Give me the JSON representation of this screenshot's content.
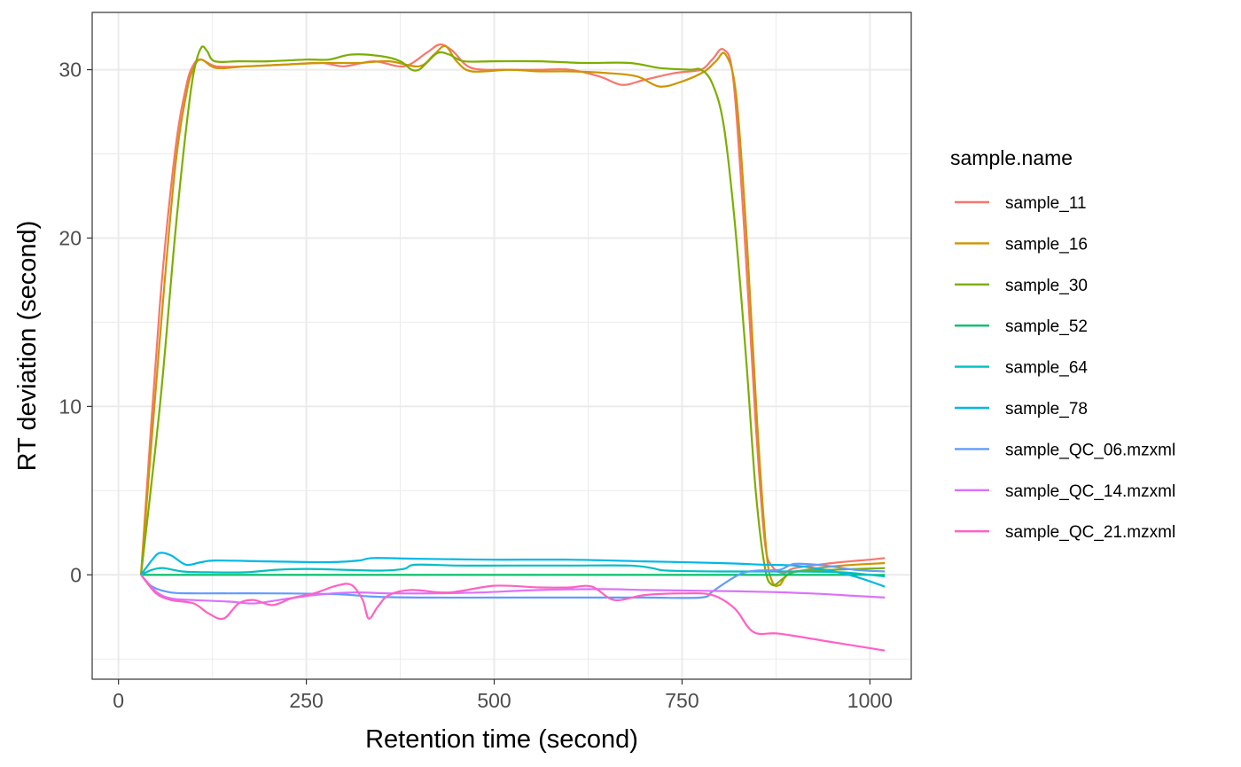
{
  "chart_data": {
    "type": "line",
    "title": "",
    "xlabel": "Retention time (second)",
    "ylabel": "RT deviation (second)",
    "xlim": [
      -35,
      1055
    ],
    "ylim": [
      -6.2,
      33.4
    ],
    "x_ticks": [
      0,
      250,
      500,
      750,
      1000
    ],
    "x_tick_labels": [
      "0",
      "250",
      "500",
      "750",
      "1000"
    ],
    "y_ticks": [
      0,
      10,
      20,
      30
    ],
    "y_tick_labels": [
      "0",
      "10",
      "20",
      "30"
    ],
    "grid": true,
    "legend_title": "sample.name",
    "legend_position": "right",
    "series": [
      {
        "name": "sample_11",
        "color": "#F8766D",
        "points": [
          [
            30,
            0
          ],
          [
            55,
            16
          ],
          [
            75,
            25
          ],
          [
            90,
            29
          ],
          [
            100,
            30.3
          ],
          [
            110,
            30.6
          ],
          [
            130,
            30.2
          ],
          [
            170,
            30.2
          ],
          [
            220,
            30.3
          ],
          [
            270,
            30.4
          ],
          [
            300,
            30.2
          ],
          [
            340,
            30.5
          ],
          [
            380,
            30.2
          ],
          [
            410,
            31
          ],
          [
            428,
            31.5
          ],
          [
            445,
            31.1
          ],
          [
            470,
            30.1
          ],
          [
            520,
            30
          ],
          [
            560,
            30
          ],
          [
            600,
            30
          ],
          [
            640,
            29.6
          ],
          [
            670,
            29.1
          ],
          [
            700,
            29.4
          ],
          [
            740,
            29.8
          ],
          [
            775,
            30
          ],
          [
            790,
            30.6
          ],
          [
            805,
            31.2
          ],
          [
            818,
            29.5
          ],
          [
            832,
            21
          ],
          [
            848,
            9
          ],
          [
            860,
            2
          ],
          [
            870,
            0.5
          ],
          [
            885,
            0.1
          ],
          [
            900,
            0.4
          ],
          [
            950,
            0.7
          ],
          [
            1000,
            0.9
          ],
          [
            1020,
            1
          ]
        ]
      },
      {
        "name": "sample_16",
        "color": "#CD9600",
        "points": [
          [
            30,
            0
          ],
          [
            55,
            14
          ],
          [
            75,
            24
          ],
          [
            90,
            28.5
          ],
          [
            100,
            30.1
          ],
          [
            110,
            30.6
          ],
          [
            130,
            30.1
          ],
          [
            170,
            30.2
          ],
          [
            220,
            30.3
          ],
          [
            270,
            30.4
          ],
          [
            320,
            30.4
          ],
          [
            360,
            30.5
          ],
          [
            400,
            30.2
          ],
          [
            420,
            30.9
          ],
          [
            435,
            31.4
          ],
          [
            450,
            30.5
          ],
          [
            470,
            29.9
          ],
          [
            520,
            30
          ],
          [
            560,
            29.9
          ],
          [
            600,
            29.9
          ],
          [
            650,
            29.8
          ],
          [
            690,
            29.6
          ],
          [
            720,
            29
          ],
          [
            750,
            29.3
          ],
          [
            780,
            29.9
          ],
          [
            795,
            30.5
          ],
          [
            808,
            30.9
          ],
          [
            822,
            28.5
          ],
          [
            836,
            20
          ],
          [
            850,
            9
          ],
          [
            862,
            1.5
          ],
          [
            870,
            -0.4
          ],
          [
            880,
            -0.6
          ],
          [
            895,
            0.1
          ],
          [
            950,
            0.5
          ],
          [
            1020,
            0.7
          ]
        ]
      },
      {
        "name": "sample_30",
        "color": "#7CAE00",
        "points": [
          [
            30,
            0
          ],
          [
            55,
            10
          ],
          [
            75,
            20
          ],
          [
            90,
            26.5
          ],
          [
            100,
            29.8
          ],
          [
            110,
            31.3
          ],
          [
            118,
            31.1
          ],
          [
            128,
            30.5
          ],
          [
            160,
            30.5
          ],
          [
            200,
            30.5
          ],
          [
            250,
            30.6
          ],
          [
            280,
            30.6
          ],
          [
            310,
            30.9
          ],
          [
            350,
            30.8
          ],
          [
            375,
            30.5
          ],
          [
            390,
            30
          ],
          [
            400,
            30
          ],
          [
            410,
            30.4
          ],
          [
            425,
            31
          ],
          [
            440,
            30.9
          ],
          [
            460,
            30.5
          ],
          [
            500,
            30.5
          ],
          [
            560,
            30.5
          ],
          [
            620,
            30.4
          ],
          [
            680,
            30.4
          ],
          [
            720,
            30.1
          ],
          [
            760,
            30
          ],
          [
            775,
            30
          ],
          [
            790,
            29.2
          ],
          [
            805,
            26.8
          ],
          [
            820,
            21
          ],
          [
            835,
            13
          ],
          [
            848,
            5
          ],
          [
            860,
            0.5
          ],
          [
            870,
            -0.6
          ],
          [
            885,
            -0.2
          ],
          [
            900,
            0.2
          ],
          [
            950,
            0.3
          ],
          [
            1020,
            0.4
          ]
        ]
      },
      {
        "name": "sample_52",
        "color": "#00BE67",
        "points": [
          [
            30,
            0
          ],
          [
            1020,
            0
          ]
        ]
      },
      {
        "name": "sample_64",
        "color": "#00BFC4",
        "points": [
          [
            30,
            0
          ],
          [
            45,
            0.3
          ],
          [
            60,
            0.4
          ],
          [
            85,
            0.2
          ],
          [
            120,
            0.15
          ],
          [
            170,
            0.15
          ],
          [
            210,
            0.3
          ],
          [
            250,
            0.35
          ],
          [
            300,
            0.3
          ],
          [
            350,
            0.25
          ],
          [
            380,
            0.35
          ],
          [
            395,
            0.6
          ],
          [
            450,
            0.55
          ],
          [
            520,
            0.55
          ],
          [
            600,
            0.55
          ],
          [
            680,
            0.55
          ],
          [
            710,
            0.4
          ],
          [
            730,
            0.25
          ],
          [
            800,
            0.2
          ],
          [
            900,
            0.2
          ],
          [
            960,
            0.15
          ],
          [
            1000,
            0
          ],
          [
            1020,
            -0.1
          ]
        ]
      },
      {
        "name": "sample_78",
        "color": "#00B8E7",
        "points": [
          [
            30,
            0
          ],
          [
            45,
            0.9
          ],
          [
            55,
            1.3
          ],
          [
            70,
            1.15
          ],
          [
            90,
            0.6
          ],
          [
            110,
            0.75
          ],
          [
            130,
            0.85
          ],
          [
            200,
            0.8
          ],
          [
            280,
            0.75
          ],
          [
            320,
            0.85
          ],
          [
            340,
            1
          ],
          [
            400,
            0.95
          ],
          [
            500,
            0.9
          ],
          [
            600,
            0.9
          ],
          [
            700,
            0.8
          ],
          [
            800,
            0.7
          ],
          [
            860,
            0.6
          ],
          [
            900,
            0.55
          ],
          [
            940,
            0.3
          ],
          [
            980,
            -0.1
          ],
          [
            1020,
            -0.7
          ]
        ]
      },
      {
        "name": "sample_QC_06.mzxml",
        "color": "#619CFF",
        "points": [
          [
            30,
            0
          ],
          [
            45,
            -0.7
          ],
          [
            70,
            -1.05
          ],
          [
            110,
            -1.1
          ],
          [
            200,
            -1.1
          ],
          [
            290,
            -1.15
          ],
          [
            340,
            -1.3
          ],
          [
            400,
            -1.35
          ],
          [
            500,
            -1.35
          ],
          [
            600,
            -1.35
          ],
          [
            700,
            -1.35
          ],
          [
            775,
            -1.35
          ],
          [
            790,
            -1
          ],
          [
            810,
            -0.4
          ],
          [
            830,
            0.1
          ],
          [
            850,
            0.25
          ],
          [
            880,
            0.3
          ],
          [
            900,
            0.65
          ],
          [
            940,
            0.55
          ],
          [
            980,
            0.3
          ],
          [
            1020,
            0.2
          ]
        ]
      },
      {
        "name": "sample_QC_14.mzxml",
        "color": "#DB72FB",
        "points": [
          [
            30,
            0
          ],
          [
            50,
            -1
          ],
          [
            70,
            -1.4
          ],
          [
            100,
            -1.5
          ],
          [
            150,
            -1.6
          ],
          [
            180,
            -1.7
          ],
          [
            220,
            -1.45
          ],
          [
            260,
            -1.2
          ],
          [
            310,
            -1.05
          ],
          [
            360,
            -1.1
          ],
          [
            420,
            -1.1
          ],
          [
            480,
            -1.05
          ],
          [
            560,
            -0.9
          ],
          [
            640,
            -0.85
          ],
          [
            700,
            -0.9
          ],
          [
            780,
            -0.95
          ],
          [
            850,
            -1
          ],
          [
            920,
            -1.1
          ],
          [
            980,
            -1.25
          ],
          [
            1020,
            -1.35
          ]
        ]
      },
      {
        "name": "sample_QC_21.mzxml",
        "color": "#FF61C3",
        "points": [
          [
            30,
            0
          ],
          [
            50,
            -1.1
          ],
          [
            70,
            -1.5
          ],
          [
            100,
            -1.7
          ],
          [
            120,
            -2.3
          ],
          [
            140,
            -2.6
          ],
          [
            160,
            -1.7
          ],
          [
            180,
            -1.5
          ],
          [
            205,
            -1.8
          ],
          [
            230,
            -1.4
          ],
          [
            260,
            -1.1
          ],
          [
            290,
            -0.65
          ],
          [
            310,
            -0.6
          ],
          [
            325,
            -1.5
          ],
          [
            333,
            -2.6
          ],
          [
            345,
            -1.9
          ],
          [
            360,
            -1.2
          ],
          [
            390,
            -0.9
          ],
          [
            440,
            -1.05
          ],
          [
            500,
            -0.65
          ],
          [
            560,
            -0.75
          ],
          [
            600,
            -0.75
          ],
          [
            630,
            -0.7
          ],
          [
            660,
            -1.5
          ],
          [
            700,
            -1.2
          ],
          [
            750,
            -1.1
          ],
          [
            790,
            -1.2
          ],
          [
            820,
            -2
          ],
          [
            845,
            -3.4
          ],
          [
            880,
            -3.5
          ],
          [
            950,
            -4
          ],
          [
            1020,
            -4.5
          ]
        ]
      }
    ]
  }
}
